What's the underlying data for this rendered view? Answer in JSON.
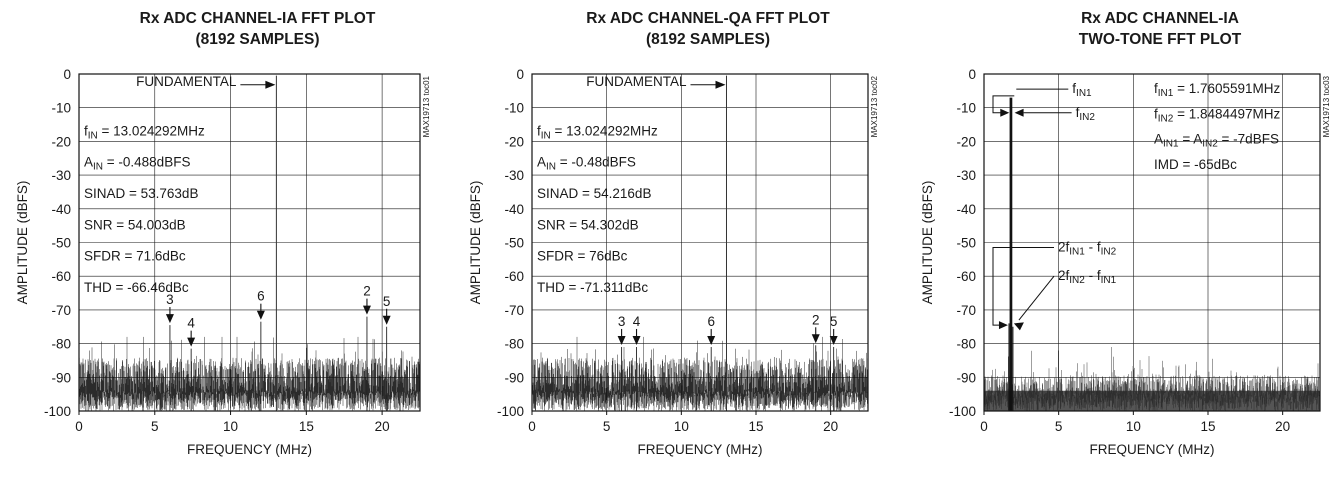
{
  "chart_data": [
    {
      "type": "line",
      "title": [
        "Rx ADC CHANNEL-IA FFT PLOT",
        "(8192 SAMPLES)"
      ],
      "xlabel": "FREQUENCY (MHz)",
      "ylabel": "AMPLITUDE (dBFS)",
      "xlim": [
        0,
        22.5
      ],
      "ylim": [
        -100,
        0
      ],
      "xticks": [
        "0",
        "5",
        "10",
        "15",
        "20"
      ],
      "yticks": [
        "0",
        "-10",
        "-20",
        "-30",
        "-40",
        "-50",
        "-60",
        "-70",
        "-80",
        "-90",
        "-100"
      ],
      "grid": true,
      "figure_code": "MAX19713 toc01",
      "noise_floor": -92,
      "noise_spread": 7,
      "fundamental_label": "FUNDAMENTAL",
      "fundamental": {
        "x": 13.024,
        "y": -0.488
      },
      "annotations": [
        "f|IN| = 13.024292MHz",
        "A|IN| = -0.488dBFS",
        "SINAD = 53.763dB",
        "SNR = 54.003dB",
        "SFDR = 71.6dBc",
        "THD = -66.46dBc"
      ],
      "harmonics": [
        {
          "label": "3",
          "x": 6.0,
          "y": -74.5
        },
        {
          "label": "4",
          "x": 7.4,
          "y": -81.5
        },
        {
          "label": "6",
          "x": 12.0,
          "y": -73.5
        },
        {
          "label": "2",
          "x": 19.0,
          "y": -72.0
        },
        {
          "label": "5",
          "x": 20.3,
          "y": -75.0
        }
      ]
    },
    {
      "type": "line",
      "title": [
        "Rx ADC CHANNEL-QA FFT PLOT",
        "(8192 SAMPLES)"
      ],
      "xlabel": "FREQUENCY (MHz)",
      "ylabel": "AMPLITUDE (dBFS)",
      "xlim": [
        0,
        22.5
      ],
      "ylim": [
        -100,
        0
      ],
      "xticks": [
        "0",
        "5",
        "10",
        "15",
        "20"
      ],
      "yticks": [
        "0",
        "-10",
        "-20",
        "-30",
        "-40",
        "-50",
        "-60",
        "-70",
        "-80",
        "-90",
        "-100"
      ],
      "grid": true,
      "figure_code": "MAX19713 toc02",
      "noise_floor": -92,
      "noise_spread": 7,
      "fundamental_label": "FUNDAMENTAL",
      "fundamental": {
        "x": 13.024,
        "y": -0.48
      },
      "annotations": [
        "f|IN| = 13.024292MHz",
        "A|IN| = -0.48dBFS",
        "SINAD = 54.216dB",
        "SNR = 54.302dB",
        "SFDR = 76dBc",
        "THD = -71.311dBc"
      ],
      "harmonics": [
        {
          "label": "3",
          "x": 6.0,
          "y": -81.0
        },
        {
          "label": "4",
          "x": 7.0,
          "y": -81.0
        },
        {
          "label": "6",
          "x": 12.0,
          "y": -81.0
        },
        {
          "label": "2",
          "x": 19.0,
          "y": -80.5
        },
        {
          "label": "5",
          "x": 20.2,
          "y": -81.0
        }
      ]
    },
    {
      "type": "area",
      "title": [
        "Rx ADC CHANNEL-IA",
        "TWO-TONE FFT PLOT"
      ],
      "xlabel": "FREQUENCY (MHz)",
      "ylabel": "AMPLITUDE (dBFS)",
      "xlim": [
        0,
        22.5
      ],
      "ylim": [
        -100,
        0
      ],
      "xticks": [
        "0",
        "5",
        "10",
        "15",
        "20"
      ],
      "yticks": [
        "0",
        "-10",
        "-20",
        "-30",
        "-40",
        "-50",
        "-60",
        "-70",
        "-80",
        "-90",
        "-100"
      ],
      "grid": true,
      "figure_code": "MAX19713 toc03",
      "noise_floor": -95,
      "noise_spread": 5,
      "tones": [
        {
          "x": 1.7606,
          "y": -7
        },
        {
          "x": 1.8484,
          "y": -7
        }
      ],
      "imd_products": [
        {
          "x": 1.6727,
          "y": -74
        },
        {
          "x": 1.9363,
          "y": -75
        }
      ],
      "annotations": [
        "f|IN1| = 1.7605591MHz",
        "f|IN2| = 1.8484497MHz",
        "A|IN1| = A|IN2| = -7dBFS",
        "IMD = -65dBc"
      ],
      "tone_labels": [
        "f|IN1|",
        "f|IN2|",
        "2f|IN1| - f|IN2|",
        "2f|IN2| - f|IN1|"
      ]
    }
  ]
}
